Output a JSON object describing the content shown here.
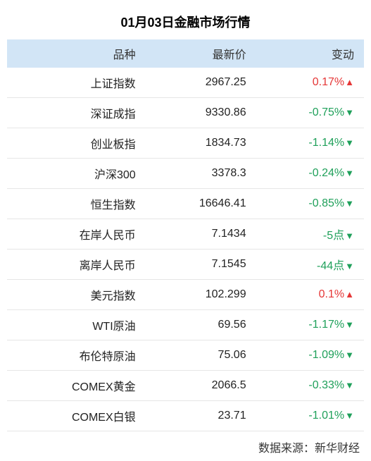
{
  "title": "01月03日金融市场行情",
  "columns": [
    "品种",
    "最新价",
    "变动"
  ],
  "rows": [
    {
      "name": "上证指数",
      "price": "2967.25",
      "change": "0.17%",
      "dir": "up"
    },
    {
      "name": "深证成指",
      "price": "9330.86",
      "change": "-0.75%",
      "dir": "down"
    },
    {
      "name": "创业板指",
      "price": "1834.73",
      "change": "-1.14%",
      "dir": "down"
    },
    {
      "name": "沪深300",
      "price": "3378.3",
      "change": "-0.24%",
      "dir": "down"
    },
    {
      "name": "恒生指数",
      "price": "16646.41",
      "change": "-0.85%",
      "dir": "down"
    },
    {
      "name": "在岸人民币",
      "price": "7.1434",
      "change": "-5点",
      "dir": "down"
    },
    {
      "name": "离岸人民币",
      "price": "7.1545",
      "change": "-44点",
      "dir": "down"
    },
    {
      "name": "美元指数",
      "price": "102.299",
      "change": "0.1%",
      "dir": "up"
    },
    {
      "name": "WTI原油",
      "price": "69.56",
      "change": "-1.17%",
      "dir": "down"
    },
    {
      "name": "布伦特原油",
      "price": "75.06",
      "change": "-1.09%",
      "dir": "down"
    },
    {
      "name": "COMEX黄金",
      "price": "2066.5",
      "change": "-0.33%",
      "dir": "down"
    },
    {
      "name": "COMEX白银",
      "price": "23.71",
      "change": "-1.01%",
      "dir": "down"
    }
  ],
  "source_label": "数据来源：新华财经",
  "colors": {
    "header_bg": "#d2e5f6",
    "up": "#e53737",
    "down": "#1fa05a",
    "border": "#e6e6e6",
    "text": "#222"
  },
  "arrows": {
    "up": "▲",
    "down": "▼"
  }
}
